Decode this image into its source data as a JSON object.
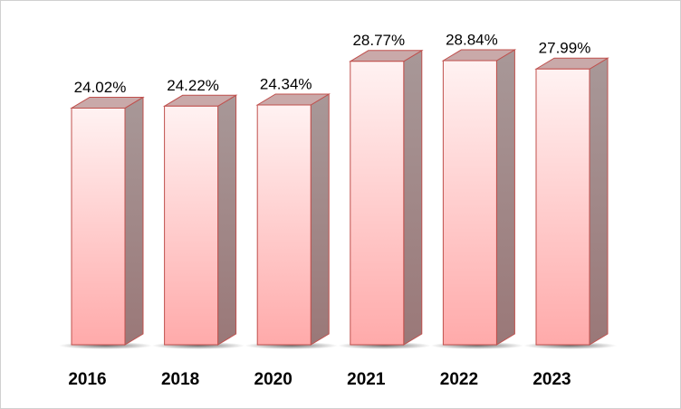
{
  "chart_data": {
    "type": "bar3d",
    "categories": [
      "2016",
      "2018",
      "2020",
      "2021",
      "2022",
      "2023"
    ],
    "values": [
      24.02,
      24.22,
      24.34,
      28.77,
      28.84,
      27.99
    ],
    "value_labels": [
      "24.02%",
      "24.22%",
      "24.34%",
      "28.77%",
      "28.84%",
      "27.99%"
    ],
    "color": "#ffb3b3"
  }
}
